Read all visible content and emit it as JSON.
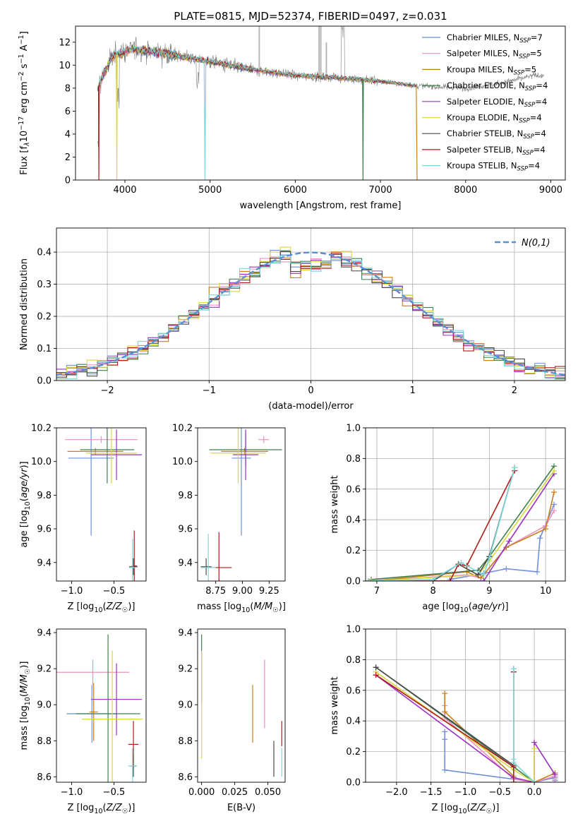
{
  "figure": {
    "title": "PLATE=0815, MJD=52374, FIBERID=0497, z=0.031"
  },
  "series": [
    {
      "key": "chab_miles",
      "label": "Chabrier MILES, N",
      "sub": "SSP",
      "suffix": "=7",
      "color": "#6f8fdb"
    },
    {
      "key": "salp_miles",
      "label": "Salpeter MILES, N",
      "sub": "SSP",
      "suffix": "=5",
      "color": "#ef8fbf"
    },
    {
      "key": "krou_miles",
      "label": "Kroupa MILES, N",
      "sub": "SSP",
      "suffix": "=5",
      "color": "#c87f1e"
    },
    {
      "key": "chab_elodie",
      "label": "Chabrier ELODIE, N",
      "sub": "SSP",
      "suffix": "=4",
      "color": "#3f7f4f"
    },
    {
      "key": "salp_elodie",
      "label": "Salpeter ELODIE, N",
      "sub": "SSP",
      "suffix": "=4",
      "color": "#9a32c0"
    },
    {
      "key": "krou_elodie",
      "label": "Kroupa ELODIE, N",
      "sub": "SSP",
      "suffix": "=4",
      "color": "#d8d840"
    },
    {
      "key": "chab_stelib",
      "label": "Chabrier STELIB, N",
      "sub": "SSP",
      "suffix": "=4",
      "color": "#4a4a4a"
    },
    {
      "key": "salp_stelib",
      "label": "Salpeter STELIB, N",
      "sub": "SSP",
      "suffix": "=4",
      "color": "#b01c1c"
    },
    {
      "key": "krou_stelib",
      "label": "Kroupa STELIB, N",
      "sub": "SSP",
      "suffix": "=4",
      "color": "#7dd8d8"
    }
  ],
  "chart_data": [
    {
      "id": "spectrum",
      "type": "line",
      "title": "PLATE=0815, MJD=52374, FIBERID=0497, z=0.031",
      "xlabel": "wavelength [Angstrom, rest frame]",
      "ylabel_parts": [
        "Flux [f",
        "λ",
        "10",
        "−17",
        " erg cm",
        "−2",
        " s",
        "−1",
        " A",
        "−1",
        "]"
      ],
      "xlim": [
        3420,
        9170
      ],
      "ylim": [
        0,
        13.4
      ],
      "xticks": [
        4000,
        5000,
        6000,
        7000,
        8000,
        9000
      ],
      "yticks": [
        0,
        2,
        4,
        6,
        8,
        10,
        12
      ],
      "data_color": "#808080",
      "data_shape": [
        [
          3680,
          8.0
        ],
        [
          3850,
          10.8
        ],
        [
          4100,
          11.4
        ],
        [
          4500,
          11.0
        ],
        [
          5000,
          10.3
        ],
        [
          5500,
          9.6
        ],
        [
          6000,
          9.1
        ],
        [
          6500,
          8.9
        ],
        [
          7000,
          8.6
        ],
        [
          7420,
          8.2
        ],
        [
          8000,
          8.0
        ],
        [
          8400,
          8.4
        ],
        [
          8800,
          9.1
        ]
      ],
      "model_end_wavelength": 7430,
      "legend_position": "upper right"
    },
    {
      "id": "residuals",
      "type": "step",
      "xlabel": "(data-model)/error",
      "ylabel": "Normed distribution",
      "xlim": [
        -2.5,
        2.5
      ],
      "ylim": [
        0,
        0.475
      ],
      "xticks": [
        -2,
        -1,
        0,
        1,
        2
      ],
      "xticklabels": [
        "−2",
        "−1",
        "0",
        "1",
        "2"
      ],
      "yticks": [
        0.0,
        0.1,
        0.2,
        0.3,
        0.4
      ],
      "yticklabels": [
        "0.0",
        "0.1",
        "0.2",
        "0.3",
        "0.4"
      ],
      "bin_width": 0.1,
      "gaussian_label": "N(0,1)",
      "gaussian_color": "#5b8fd5",
      "legend_position": "upper right",
      "grid": true
    },
    {
      "id": "age_vs_Z",
      "type": "errorbar",
      "xlabel": "Z [log10(Z/Z☉)]",
      "ylabel": "age  [log10(age/yr)]",
      "xlim": [
        -1.18,
        -0.12
      ],
      "ylim": [
        9.29,
        10.2
      ],
      "xticks": [
        -1.0,
        -0.5
      ],
      "xticklabels": [
        "−1.0",
        "−0.5"
      ],
      "yticks": [
        9.4,
        9.6,
        9.8,
        10.0,
        10.2
      ],
      "yticklabels": [
        "9.4",
        "9.6",
        "9.8",
        "10.0",
        "10.2"
      ],
      "points": [
        {
          "s": "chab_miles",
          "x": -0.77,
          "y": 10.02,
          "xe": 0.27,
          "ye": 0.46
        },
        {
          "s": "salp_miles",
          "x": -0.65,
          "y": 10.13,
          "xe": 0.43,
          "ye": 0.02
        },
        {
          "s": "krou_miles",
          "x": -0.72,
          "y": 10.06,
          "xe": 0.33,
          "ye": 0.02
        },
        {
          "s": "chab_elodie",
          "x": -0.58,
          "y": 10.07,
          "xe": 0.32,
          "ye": 0.2
        },
        {
          "s": "salp_elodie",
          "x": -0.47,
          "y": 10.04,
          "xe": 0.3,
          "ye": 0.15
        },
        {
          "s": "krou_elodie",
          "x": -0.53,
          "y": 10.05,
          "xe": 0.3,
          "ye": 0.18
        },
        {
          "s": "chab_stelib",
          "x": -0.27,
          "y": 9.375,
          "xe": 0.05,
          "ye": 0.05
        },
        {
          "s": "salp_stelib",
          "x": -0.26,
          "y": 9.38,
          "xe": 0.03,
          "ye": 0.21
        },
        {
          "s": "krou_stelib",
          "x": -0.28,
          "y": 9.37,
          "xe": 0.04,
          "ye": 0.17
        }
      ]
    },
    {
      "id": "age_vs_mass",
      "type": "errorbar",
      "xlabel": "mass [log10(M/M☉)]",
      "xlim": [
        8.58,
        9.4
      ],
      "ylim": [
        9.29,
        10.2
      ],
      "xticks": [
        8.75,
        9.0,
        9.25
      ],
      "xticklabels": [
        "8.75",
        "9.00",
        "9.25"
      ],
      "yticks": [
        9.4,
        9.6,
        9.8,
        10.0,
        10.2
      ],
      "yticklabels": [
        "9.4",
        "9.6",
        "9.8",
        "10.0",
        "10.2"
      ],
      "points": [
        {
          "s": "chab_miles",
          "x": 8.99,
          "y": 10.02,
          "xe": 0.09,
          "ye": 0.46
        },
        {
          "s": "salp_miles",
          "x": 9.2,
          "y": 10.13,
          "xe": 0.05,
          "ye": 0.02
        },
        {
          "s": "krou_miles",
          "x": 9.02,
          "y": 10.06,
          "xe": 0.22,
          "ye": 0.02
        },
        {
          "s": "chab_elodie",
          "x": 9.03,
          "y": 10.07,
          "xe": 0.34,
          "ye": 0.1
        },
        {
          "s": "salp_elodie",
          "x": 9.03,
          "y": 10.04,
          "xe": 0.12,
          "ye": 0.15
        },
        {
          "s": "krou_elodie",
          "x": 8.96,
          "y": 10.05,
          "xe": 0.26,
          "ye": 0.18
        },
        {
          "s": "chab_stelib",
          "x": 8.66,
          "y": 9.375,
          "xe": 0.05,
          "ye": 0.05
        },
        {
          "s": "salp_stelib",
          "x": 8.78,
          "y": 9.37,
          "xe": 0.12,
          "ye": 0.21
        },
        {
          "s": "krou_stelib",
          "x": 8.68,
          "y": 9.37,
          "xe": 0.07,
          "ye": 0.2
        }
      ]
    },
    {
      "id": "weight_vs_age",
      "type": "line",
      "xlabel": "age  [log10(age/yr)]",
      "ylabel": "mass weight",
      "xlim": [
        6.8,
        10.35
      ],
      "ylim": [
        0,
        1.0
      ],
      "xticks": [
        7,
        8,
        9,
        10
      ],
      "xticklabels": [
        "7",
        "8",
        "9",
        "10"
      ],
      "yticks": [
        0.0,
        0.2,
        0.4,
        0.6,
        0.8,
        1.0
      ],
      "yticklabels": [
        "0.0",
        "0.2",
        "0.4",
        "0.6",
        "0.8",
        "1.0"
      ],
      "grid": true,
      "series": [
        {
          "s": "chab_miles",
          "x": [
            8.3,
            8.9,
            9.3,
            9.85,
            9.9,
            10.15
          ],
          "y": [
            0.01,
            0.05,
            0.08,
            0.06,
            0.28,
            0.5
          ]
        },
        {
          "s": "salp_miles",
          "x": [
            6.9,
            8.6,
            8.85,
            9.3,
            10.0,
            10.15
          ],
          "y": [
            0.0,
            0.04,
            0.02,
            0.22,
            0.36,
            0.46
          ]
        },
        {
          "s": "krou_miles",
          "x": [
            6.9,
            8.6,
            8.85,
            9.3,
            10.0,
            10.15
          ],
          "y": [
            0.0,
            0.06,
            0.02,
            0.22,
            0.34,
            0.58
          ]
        },
        {
          "s": "chab_elodie",
          "x": [
            6.9,
            8.8,
            9.0,
            10.15
          ],
          "y": [
            0.01,
            0.07,
            0.16,
            0.75
          ]
        },
        {
          "s": "salp_elodie",
          "x": [
            6.9,
            8.9,
            9.35,
            10.15
          ],
          "y": [
            0.0,
            0.0,
            0.26,
            0.7
          ]
        },
        {
          "s": "krou_elodie",
          "x": [
            6.9,
            8.8,
            9.0,
            10.15
          ],
          "y": [
            0.0,
            0.04,
            0.13,
            0.72
          ]
        },
        {
          "s": "chab_stelib",
          "x": [
            8.0,
            8.45,
            8.8,
            9.0,
            9.45
          ],
          "y": [
            0.0,
            0.11,
            0.04,
            0.16,
            0.74
          ]
        },
        {
          "s": "salp_stelib",
          "x": [
            6.85,
            8.3,
            8.45,
            8.6,
            9.45
          ],
          "y": [
            0.0,
            0.0,
            0.11,
            0.1,
            0.72
          ]
        },
        {
          "s": "krou_stelib",
          "x": [
            6.85,
            8.0,
            8.5,
            8.9,
            9.0,
            9.45
          ],
          "y": [
            0.0,
            0.01,
            0.12,
            0.04,
            0.15,
            0.74
          ]
        }
      ]
    },
    {
      "id": "mass_vs_Z",
      "type": "errorbar",
      "xlabel": "Z [log10(Z/Z☉)]",
      "ylabel": "mass [log10(M/M☉)]",
      "xlim": [
        -1.18,
        -0.12
      ],
      "ylim": [
        8.57,
        9.42
      ],
      "xticks": [
        -1.0,
        -0.5
      ],
      "xticklabels": [
        "−1.0",
        "−0.5"
      ],
      "yticks": [
        8.6,
        8.8,
        9.0,
        9.2,
        9.4
      ],
      "yticklabels": [
        "8.6",
        "8.8",
        "9.0",
        "9.2",
        "9.4"
      ],
      "points": [
        {
          "s": "chab_miles",
          "x": -0.76,
          "y": 8.95,
          "xe": 0.3,
          "ye": 0.16
        },
        {
          "s": "salp_miles",
          "x": -0.75,
          "y": 9.18,
          "xe": 0.43,
          "ye": 0.07
        },
        {
          "s": "krou_miles",
          "x": -0.74,
          "y": 8.96,
          "xe": 0.05,
          "ye": 0.16
        },
        {
          "s": "chab_elodie",
          "x": -0.57,
          "y": 8.95,
          "xe": 0.38,
          "ye": 0.44
        },
        {
          "s": "salp_elodie",
          "x": -0.47,
          "y": 9.03,
          "xe": 0.3,
          "ye": 0.2
        },
        {
          "s": "krou_elodie",
          "x": -0.52,
          "y": 8.92,
          "xe": 0.36,
          "ye": 0.38
        },
        {
          "s": "chab_stelib",
          "x": -0.27,
          "y": 8.66,
          "xe": 0.04,
          "ye": 0.06
        },
        {
          "s": "salp_stelib",
          "x": -0.27,
          "y": 8.78,
          "xe": 0.06,
          "ye": 0.13
        },
        {
          "s": "krou_stelib",
          "x": -0.28,
          "y": 8.66,
          "xe": 0.05,
          "ye": 0.1
        }
      ]
    },
    {
      "id": "mass_vs_ebv",
      "type": "errorbar",
      "xlabel": "E(B-V)",
      "xlim": [
        -0.003,
        0.063
      ],
      "ylim": [
        8.57,
        9.42
      ],
      "xticks": [
        0.0,
        0.025,
        0.05
      ],
      "xticklabels": [
        "0.000",
        "0.025",
        "0.050"
      ],
      "yticks": [
        8.6,
        8.8,
        9.0,
        9.2,
        9.4
      ],
      "yticklabels": [
        "8.6",
        "8.8",
        "9.0",
        "9.2",
        "9.4"
      ],
      "points": [
        {
          "s": "chab_elodie",
          "x": 0.0,
          "y": 9.2,
          "xe": 0.0,
          "ye": 0.19
        },
        {
          "s": "krou_elodie",
          "x": 0.0,
          "y": 9.0,
          "xe": 0.0,
          "ye": 0.3
        },
        {
          "s": "krou_miles",
          "x": 0.0385,
          "y": 8.95,
          "xe": 0.0,
          "ye": 0.16
        },
        {
          "s": "salp_miles",
          "x": 0.0475,
          "y": 9.06,
          "xe": 0.0,
          "ye": 0.19
        },
        {
          "s": "chab_stelib",
          "x": 0.0545,
          "y": 8.7,
          "xe": 0.0,
          "ye": 0.1
        },
        {
          "s": "krou_stelib",
          "x": 0.0605,
          "y": 8.68,
          "xe": 0.0,
          "ye": 0.08
        },
        {
          "s": "salp_stelib",
          "x": 0.0605,
          "y": 8.84,
          "xe": 0.0,
          "ye": 0.07
        }
      ]
    },
    {
      "id": "weight_vs_Z",
      "type": "line",
      "xlabel": "Z [log10(Z/Z☉)]",
      "ylabel": "mass weight",
      "xlim": [
        -2.45,
        0.45
      ],
      "ylim": [
        0,
        1.0
      ],
      "xticks": [
        -2.0,
        -1.5,
        -1.0,
        -0.5,
        0.0
      ],
      "xticklabels": [
        "−2.0",
        "−1.5",
        "−1.0",
        "−0.5",
        "0.0"
      ],
      "yticks": [
        0.0,
        0.2,
        0.4,
        0.6,
        0.8,
        1.0
      ],
      "yticklabels": [
        "0.0",
        "0.2",
        "0.4",
        "0.6",
        "0.8",
        "1.0"
      ],
      "grid": true,
      "series": [
        {
          "s": "chab_miles",
          "x": [
            -1.3,
            -1.3,
            -1.3,
            -0.3,
            0.0,
            0.3,
            0.3,
            0.3
          ],
          "y": [
            0.33,
            0.28,
            0.08,
            0.02,
            0.0,
            0.03,
            0.01,
            0.01
          ]
        },
        {
          "s": "salp_miles",
          "x": [
            -1.3,
            -1.3,
            -1.3,
            -0.3,
            0.0,
            0.3,
            0.3
          ],
          "y": [
            0.5,
            0.46,
            0.42,
            0.02,
            0.0,
            0.04,
            0.02
          ]
        },
        {
          "s": "krou_miles",
          "x": [
            -1.3,
            -1.3,
            -0.3,
            -0.3,
            0.0,
            0.3
          ],
          "y": [
            0.58,
            0.46,
            0.04,
            0.0,
            0.0,
            0.06
          ]
        },
        {
          "s": "chab_elodie",
          "x": [
            -2.3,
            -0.3,
            0.0,
            0.0
          ],
          "y": [
            0.75,
            0.1,
            0.0,
            0.0
          ]
        },
        {
          "s": "salp_elodie",
          "x": [
            -2.3,
            -0.3,
            0.0,
            0.0,
            0.3
          ],
          "y": [
            0.7,
            0.03,
            0.0,
            0.26,
            0.05
          ]
        },
        {
          "s": "krou_elodie",
          "x": [
            -2.3,
            -0.3,
            0.0,
            0.0
          ],
          "y": [
            0.72,
            0.08,
            0.0,
            0.22
          ]
        },
        {
          "s": "chab_stelib",
          "x": [
            -2.3,
            -0.3,
            -0.3,
            -0.3
          ],
          "y": [
            0.75,
            0.11,
            0.72,
            0.74
          ]
        },
        {
          "s": "salp_stelib",
          "x": [
            -2.3,
            -0.3,
            -0.3,
            -0.3
          ],
          "y": [
            0.7,
            0.1,
            0.0,
            0.72
          ]
        },
        {
          "s": "krou_stelib",
          "x": [
            -0.3,
            -0.3,
            -0.3,
            0.0,
            0.0
          ],
          "y": [
            0.74,
            0.15,
            0.13,
            0.0,
            0.0
          ]
        }
      ]
    }
  ]
}
